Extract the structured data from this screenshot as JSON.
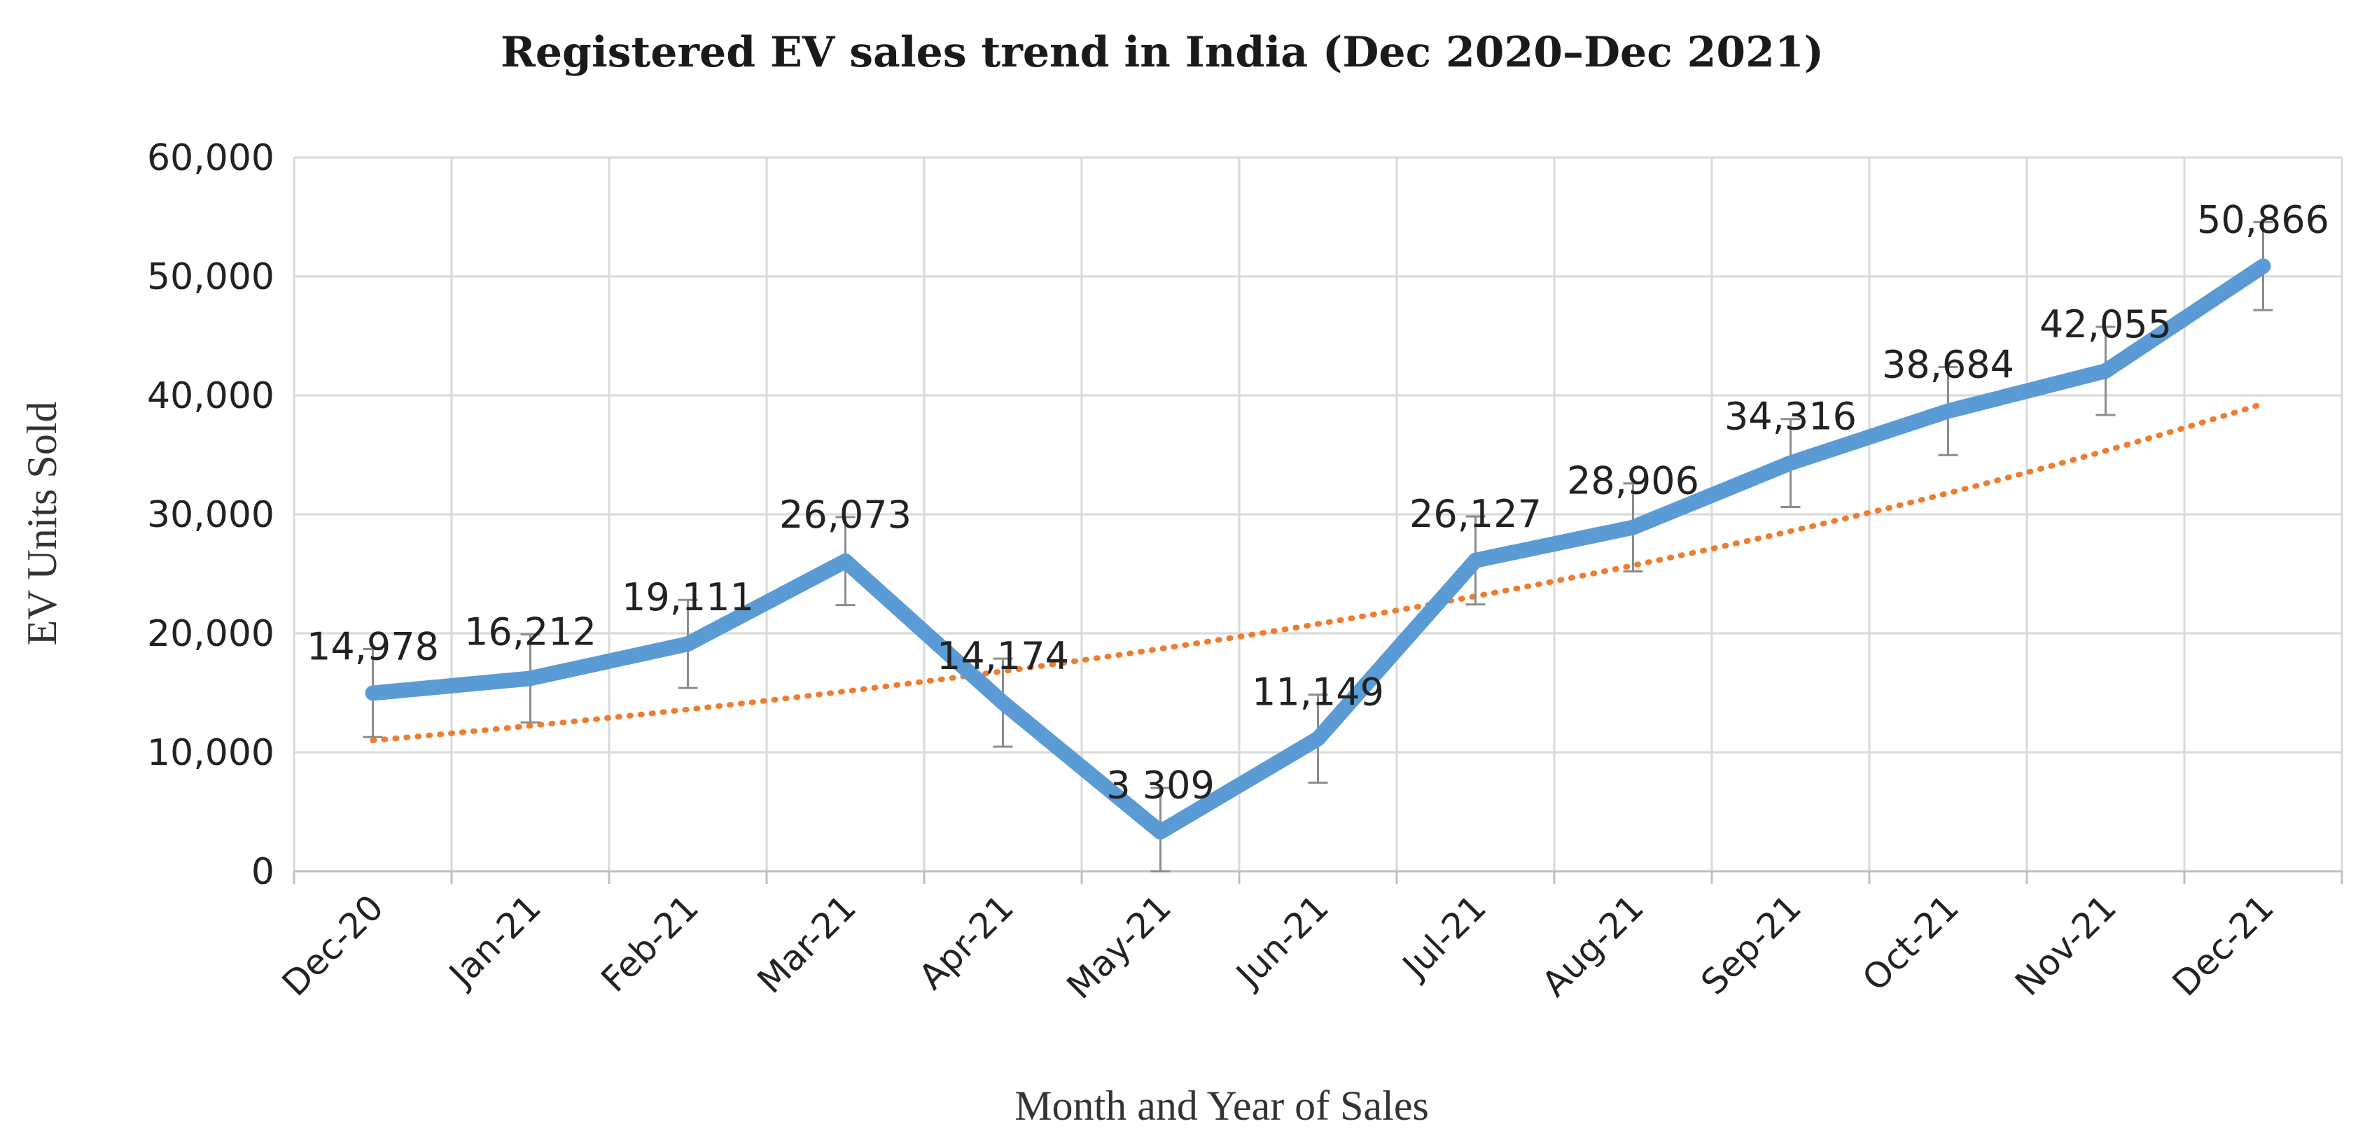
{
  "chart_data": {
    "type": "line",
    "title": "Registered EV sales trend in India (Dec 2020–Dec 2021)",
    "xlabel": "Month and Year of Sales",
    "ylabel": "EV  Units Sold",
    "categories": [
      "Dec-20",
      "Jan-21",
      "Feb-21",
      "Mar-21",
      "Apr-21",
      "May-21",
      "Jun-21",
      "Jul-21",
      "Aug-21",
      "Sep-21",
      "Oct-21",
      "Nov-21",
      "Dec-21"
    ],
    "series": [
      {
        "values": [
          14978,
          16212,
          19111,
          26073,
          14174,
          3309,
          11149,
          26127,
          28906,
          34316,
          38684,
          42055,
          50866
        ],
        "data_labels": [
          "14,978",
          "16,212",
          "19,111",
          "26,073",
          "14,174",
          "3 309",
          "11,149",
          "26,127",
          "28,906",
          "34,316",
          "38,684",
          "42,055",
          "50,866"
        ],
        "color": "#5b9bd5",
        "error_bars": true
      }
    ],
    "trendline": {
      "type": "exponential",
      "style": "dotted",
      "color": "#ed7d31",
      "start_value": 11000,
      "end_value": 39300
    },
    "ylim": [
      0,
      60000
    ],
    "yticks": [
      0,
      10000,
      20000,
      30000,
      40000,
      50000,
      60000
    ],
    "ytick_labels": [
      "0",
      "10,000",
      "20,000",
      "30,000",
      "40,000",
      "50,000",
      "60,000"
    ],
    "grid": true,
    "legend": "none"
  }
}
